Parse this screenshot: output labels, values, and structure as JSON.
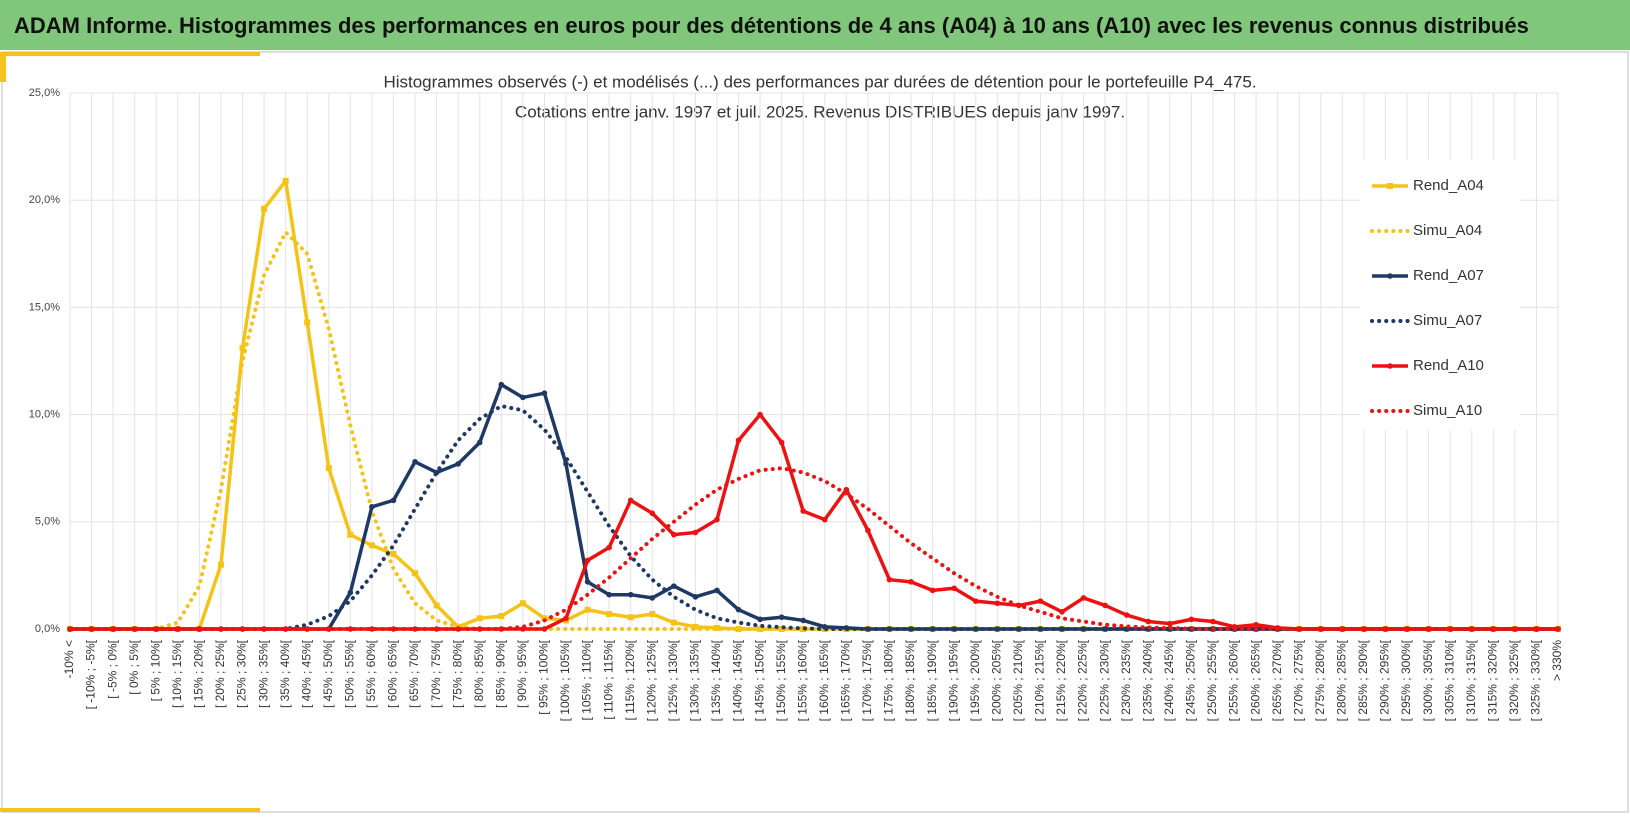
{
  "page_title": "ADAM Informe. Histogrammes des performances en euros pour des détentions de 4 ans (A04) à 10 ans (A10) avec les revenus connus distribués",
  "chart_data": {
    "type": "line",
    "title": "Histogrammes observés (-) et modélisés (...) des performances par durées de détention pour le portefeuille P4_475.",
    "subtitle": "Cotations entre janv. 1997 et juil. 2025. Revenus DISTRIBUES depuis janv 1997.",
    "categories": [
      "-10% <",
      "[ -10% ; -5%[",
      "[ -5% ; 0%[",
      "[ 0% ; 5%[",
      "[ 5% ; 10%[",
      "[ 10% ; 15%[",
      "[ 15% ; 20%[",
      "[ 20% ; 25%[",
      "[ 25% ; 30%[",
      "[ 30% ; 35%[",
      "[ 35% ; 40%[",
      "[ 40% ; 45%[",
      "[ 45% ; 50%[",
      "[ 50% ; 55%[",
      "[ 55% ; 60%[",
      "[ 60% ; 65%[",
      "[ 65% ; 70%[",
      "[ 70% ; 75%[",
      "[ 75% ; 80%[",
      "[ 80% ; 85%[",
      "[ 85% ; 90%[",
      "[ 90% ; 95%[",
      "[ 95% ; 100%[",
      "[ 100% ; 105%[",
      "[ 105% ; 110%[",
      "[ 110% ; 115%[",
      "[ 115% ; 120%[",
      "[ 120% ; 125%[",
      "[ 125% ; 130%[",
      "[ 130% ; 135%[",
      "[ 135% ; 140%[",
      "[ 140% ; 145%[",
      "[ 145% ; 150%[",
      "[ 150% ; 155%[",
      "[ 155% ; 160%[",
      "[ 160% ; 165%[",
      "[ 165% ; 170%[",
      "[ 170% ; 175%[",
      "[ 175% ; 180%[",
      "[ 180% ; 185%[",
      "[ 185% ; 190%[",
      "[ 190% ; 195%[",
      "[ 195% ; 200%[",
      "[ 200% ; 205%[",
      "[ 205% ; 210%[",
      "[ 210% ; 215%[",
      "[ 215% ; 220%[",
      "[ 220% ; 225%[",
      "[ 225% ; 230%[",
      "[ 230% ; 235%[",
      "[ 235% ; 240%[",
      "[ 240% ; 245%[",
      "[ 245% ; 250%[",
      "[ 250% ; 255%[",
      "[ 255% ; 260%[",
      "[ 260% ; 265%[",
      "[ 265% ; 270%[",
      "[ 270% ; 275%[",
      "[ 275% ; 280%[",
      "[ 280% ; 285%[",
      "[ 285% ; 290%[",
      "[ 290% ; 295%[",
      "[ 295% ; 300%[",
      "[ 300% ; 305%[",
      "[ 305% ; 310%[",
      "[ 310% ; 315%[",
      "[ 315% ; 320%[",
      "[ 320% ; 325%[",
      "[ 325% ; 330%[",
      "> 330%"
    ],
    "ylim": [
      0,
      25
    ],
    "yticks": [
      {
        "value": 0,
        "label": "0,0%"
      },
      {
        "value": 5,
        "label": "5,0%"
      },
      {
        "value": 10,
        "label": "10,0%"
      },
      {
        "value": 15,
        "label": "15,0%"
      },
      {
        "value": 20,
        "label": "20,0%"
      },
      {
        "value": 25,
        "label": "25,0%"
      }
    ],
    "grid": true,
    "legend": "right",
    "series": [
      {
        "name": "Rend_A04",
        "color": "#f5c218",
        "style": "solid",
        "marker": "square",
        "values": [
          0,
          0,
          0,
          0,
          0,
          0,
          0,
          3.0,
          13.1,
          19.6,
          20.9,
          14.3,
          7.5,
          4.4,
          3.9,
          3.5,
          2.6,
          1.1,
          0.1,
          0.5,
          0.6,
          1.2,
          0.5,
          0.4,
          0.9,
          0.7,
          0.55,
          0.7,
          0.3,
          0.1,
          0.05,
          0,
          0,
          0,
          0,
          0,
          0,
          0,
          0,
          0,
          0,
          0,
          0,
          0,
          0,
          0,
          0,
          0,
          0,
          0,
          0,
          0,
          0,
          0,
          0,
          0,
          0,
          0,
          0,
          0,
          0,
          0,
          0,
          0,
          0,
          0,
          0,
          0,
          0,
          0
        ]
      },
      {
        "name": "Simu_A04",
        "color": "#f5c218",
        "style": "dotted",
        "marker": "none",
        "values": [
          0,
          0,
          0,
          0,
          0,
          0.3,
          2.0,
          6.5,
          12.5,
          16.5,
          18.5,
          17.5,
          14,
          9.5,
          5.5,
          2.8,
          1.2,
          0.4,
          0.1,
          0,
          0,
          0,
          0,
          0,
          0,
          0,
          0,
          0,
          0,
          0,
          0,
          0,
          0,
          0,
          0,
          0,
          0,
          0,
          0,
          0,
          0,
          0,
          0,
          0,
          0,
          0,
          0,
          0,
          0,
          0,
          0,
          0,
          0,
          0,
          0,
          0,
          0,
          0,
          0,
          0,
          0,
          0,
          0,
          0,
          0,
          0,
          0,
          0,
          0,
          0
        ]
      },
      {
        "name": "Rend_A07",
        "color": "#1f3864",
        "style": "solid",
        "marker": "circle",
        "values": [
          0,
          0,
          0,
          0,
          0,
          0,
          0,
          0,
          0,
          0,
          0,
          0,
          0,
          1.7,
          5.7,
          6.0,
          7.8,
          7.3,
          7.7,
          8.7,
          11.4,
          10.8,
          11.0,
          7.7,
          2.2,
          1.6,
          1.6,
          1.45,
          2.0,
          1.5,
          1.8,
          0.9,
          0.45,
          0.55,
          0.4,
          0.1,
          0.05,
          0,
          0,
          0,
          0,
          0,
          0,
          0,
          0,
          0,
          0,
          0,
          0,
          0,
          0,
          0,
          0,
          0,
          0,
          0,
          0,
          0,
          0,
          0,
          0,
          0,
          0,
          0,
          0,
          0,
          0,
          0,
          0,
          0
        ]
      },
      {
        "name": "Simu_A07",
        "color": "#1f3864",
        "style": "dotted",
        "marker": "none",
        "values": [
          0,
          0,
          0,
          0,
          0,
          0,
          0,
          0,
          0,
          0,
          0,
          0.2,
          0.6,
          1.3,
          2.5,
          3.9,
          5.6,
          7.3,
          8.8,
          9.8,
          10.4,
          10.2,
          9.3,
          8.0,
          6.4,
          4.8,
          3.4,
          2.3,
          1.5,
          0.9,
          0.5,
          0.3,
          0.15,
          0.08,
          0.03,
          0,
          0,
          0,
          0,
          0,
          0,
          0,
          0,
          0,
          0,
          0,
          0,
          0,
          0,
          0,
          0,
          0,
          0,
          0,
          0,
          0,
          0,
          0,
          0,
          0,
          0,
          0,
          0,
          0,
          0,
          0,
          0,
          0,
          0,
          0
        ]
      },
      {
        "name": "Rend_A10",
        "color": "#ee1111",
        "style": "solid",
        "marker": "circle",
        "values": [
          0,
          0,
          0,
          0,
          0,
          0,
          0,
          0,
          0,
          0,
          0,
          0,
          0,
          0,
          0,
          0,
          0,
          0,
          0,
          0,
          0,
          0,
          0,
          0.5,
          3.2,
          3.8,
          6.0,
          5.4,
          4.4,
          4.5,
          5.1,
          8.8,
          10.0,
          8.7,
          5.5,
          5.1,
          6.5,
          4.6,
          2.3,
          2.2,
          1.8,
          1.9,
          1.3,
          1.2,
          1.1,
          1.3,
          0.8,
          1.45,
          1.1,
          0.65,
          0.35,
          0.25,
          0.45,
          0.35,
          0.1,
          0.2,
          0.05,
          0,
          0,
          0,
          0,
          0,
          0,
          0,
          0,
          0,
          0,
          0,
          0,
          0
        ]
      },
      {
        "name": "Simu_A10",
        "color": "#ee1111",
        "style": "dotted",
        "marker": "none",
        "values": [
          0,
          0,
          0,
          0,
          0,
          0,
          0,
          0,
          0,
          0,
          0,
          0,
          0,
          0,
          0,
          0,
          0,
          0,
          0,
          0,
          0,
          0.1,
          0.4,
          0.9,
          1.6,
          2.4,
          3.3,
          4.2,
          5.0,
          5.8,
          6.5,
          7.0,
          7.4,
          7.5,
          7.3,
          6.9,
          6.3,
          5.6,
          4.8,
          4.0,
          3.3,
          2.6,
          2.0,
          1.5,
          1.1,
          0.8,
          0.5,
          0.35,
          0.2,
          0.12,
          0.07,
          0.04,
          0.02,
          0,
          0,
          0,
          0,
          0,
          0,
          0,
          0,
          0,
          0,
          0,
          0,
          0,
          0,
          0,
          0,
          0
        ]
      }
    ]
  }
}
